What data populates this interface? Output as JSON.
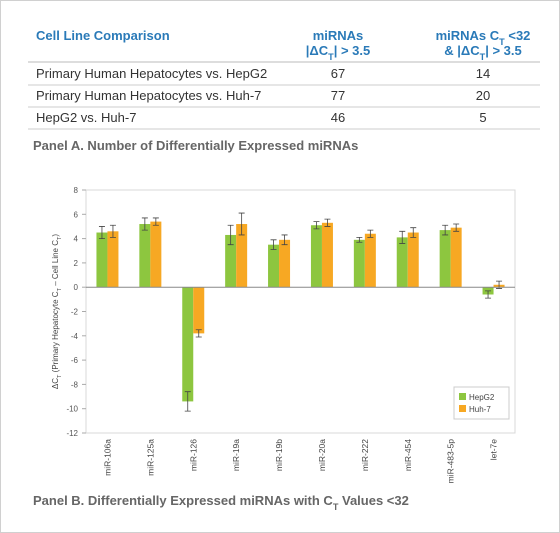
{
  "table": {
    "header": [
      "Cell Line Comparison",
      {
        "line1": [
          "miRNAs"
        ],
        "line2": [
          "|ΔC",
          "T",
          "| > 3.5"
        ]
      },
      {
        "line1": [
          "miRNAs C",
          "T",
          " <32"
        ],
        "line2": [
          "& |ΔC",
          "T",
          "| > 3.5"
        ]
      }
    ],
    "rows": [
      [
        "Primary Human Hepatocytes vs. HepG2",
        67,
        14
      ],
      [
        "Primary Human Hepatocytes vs. Huh-7",
        77,
        20
      ],
      [
        "HepG2 vs. Huh-7",
        46,
        5
      ]
    ]
  },
  "caption_a": "Panel A. Number of Differentially Expressed miRNAs",
  "chart_data": {
    "type": "bar",
    "y_label": [
      "ΔC",
      "T",
      " (Primary Hepatocyte C",
      "T",
      " – Cell Line C",
      "T",
      ")"
    ],
    "categories": [
      "miR-106a",
      "miR-125a",
      "miR-126",
      "miR-19a",
      "miR-19b",
      "miR-20a",
      "miR-222",
      "miR-454",
      "miR-483-5p",
      "let-7e"
    ],
    "series": [
      {
        "name": "HepG2",
        "color": "#8dc63f",
        "values": [
          4.5,
          5.2,
          -9.4,
          4.3,
          3.5,
          5.1,
          3.9,
          4.1,
          4.7,
          -0.6
        ],
        "errors": [
          0.5,
          0.5,
          0.8,
          0.8,
          0.4,
          0.3,
          0.2,
          0.5,
          0.4,
          0.3
        ]
      },
      {
        "name": "Huh-7",
        "color": "#f7a823",
        "values": [
          4.6,
          5.4,
          -3.8,
          5.2,
          3.9,
          5.3,
          4.4,
          4.5,
          4.9,
          0.2
        ],
        "errors": [
          0.5,
          0.3,
          0.3,
          0.9,
          0.4,
          0.3,
          0.3,
          0.4,
          0.3,
          0.3
        ]
      }
    ],
    "ylim": [
      -12,
      8
    ],
    "yticks": [
      -12,
      -10,
      -8,
      -6,
      -4,
      -2,
      0,
      2,
      4,
      6,
      8
    ],
    "legend": "bottom-right"
  },
  "caption_b": [
    "Panel B.  Differentially Expressed miRNAs with C",
    "T",
    " Values <32"
  ]
}
